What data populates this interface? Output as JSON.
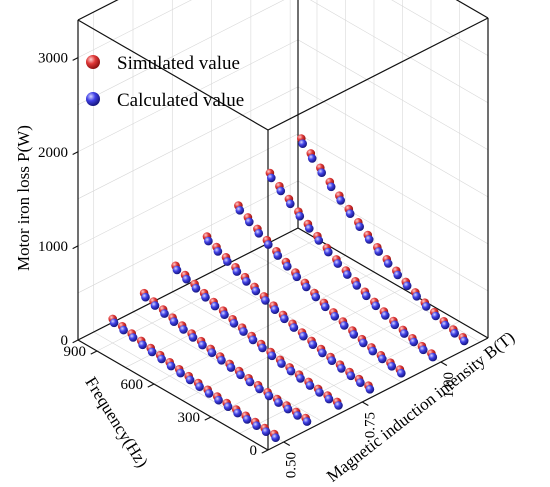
{
  "chart_data": {
    "type": "scatter3d",
    "x_axis": {
      "label": "Frequency(Hz)",
      "range": [
        0,
        1000
      ],
      "ticks": [
        0,
        300,
        600,
        900
      ]
    },
    "y_axis": {
      "label": "Magnetic induction intensity B(T)",
      "range": [
        0.45,
        1.15
      ],
      "ticks": [
        0.5,
        0.75,
        1.0
      ],
      "tick_labels": [
        "0.50",
        "0.75",
        "1.00"
      ]
    },
    "z_axis": {
      "label": "Motor iron loss P(W)",
      "range": [
        0,
        3400
      ],
      "ticks": [
        0,
        1000,
        2000,
        3000
      ]
    },
    "legend": {
      "placement": "top-left"
    },
    "grid": true,
    "series": [
      {
        "name": "Simulated value",
        "color": "#e03838",
        "marker": "sphere"
      },
      {
        "name": "Calculated value",
        "color": "#3a3ae0",
        "marker": "sphere"
      }
    ]
  }
}
